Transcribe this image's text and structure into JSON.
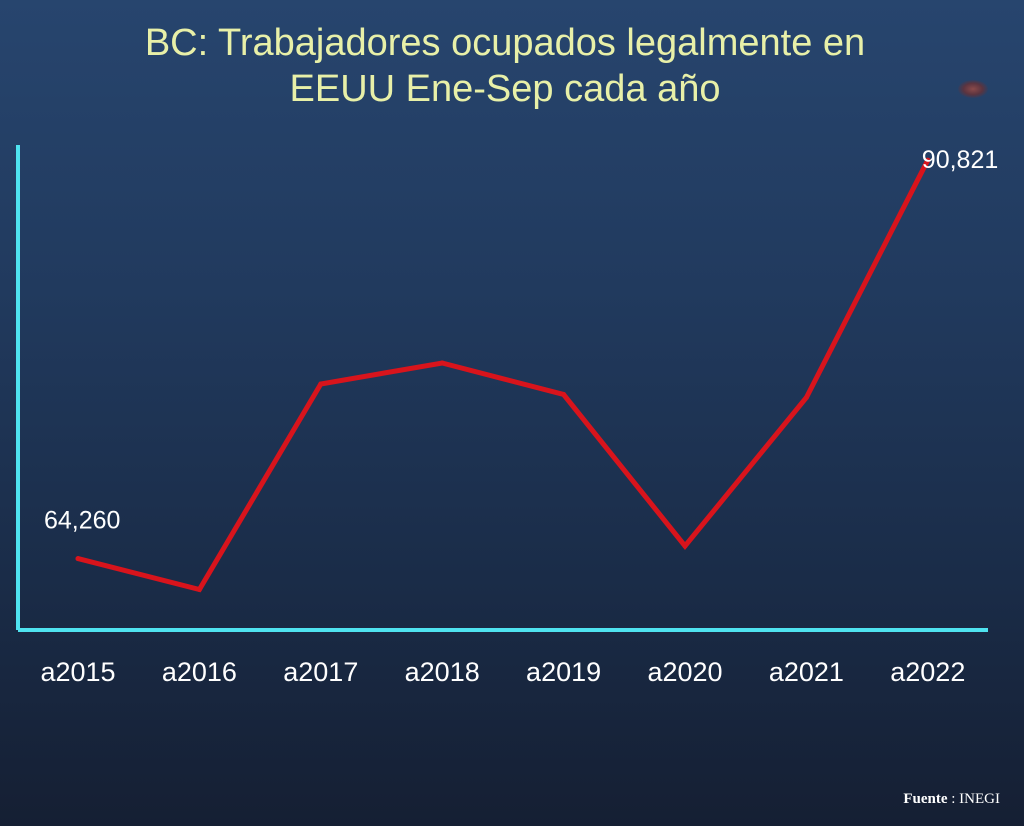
{
  "chart_data": {
    "type": "line",
    "title_lines": [
      "BC: Trabajadores ocupados legalmente en",
      "EEUU Ene-Sep cada año"
    ],
    "categories": [
      "a2015",
      "a2016",
      "a2017",
      "a2018",
      "a2019",
      "a2020",
      "a2021",
      "a2022"
    ],
    "values": [
      64260,
      62200,
      75900,
      77300,
      75200,
      65100,
      75000,
      90821
    ],
    "data_labels": {
      "a2015": "64,260",
      "a2022": "90,821"
    },
    "ylim": [
      59500,
      91500
    ],
    "grid": false,
    "legend": "none",
    "line_color": "#d8141c",
    "axis_color": "#4fe3f0"
  },
  "source": {
    "label": "Fuente",
    "separator": " : ",
    "value": "INEGI"
  }
}
